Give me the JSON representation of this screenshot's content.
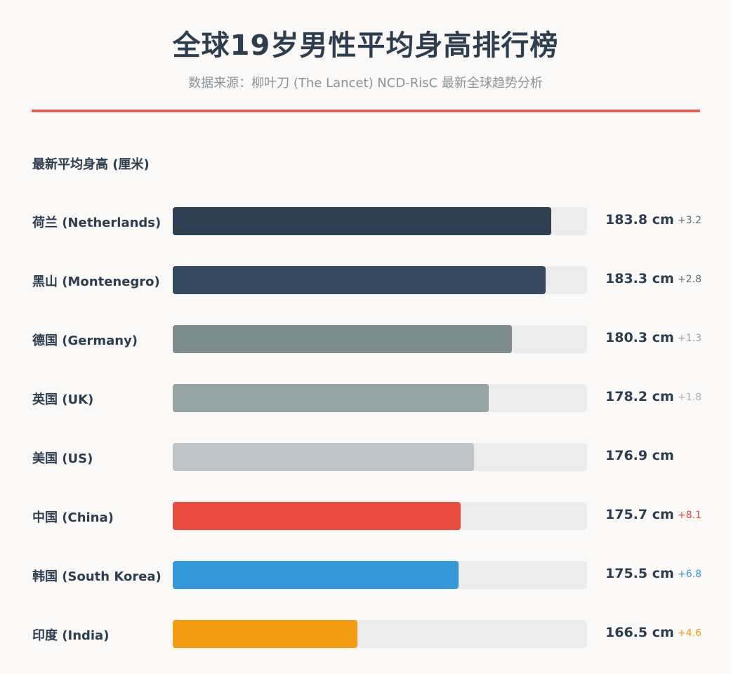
{
  "header": {
    "title": "全球19岁男性平均身高排行榜",
    "subtitle": "数据来源：柳叶刀 (The Lancet) NCD-RisC 最新全球趋势分析"
  },
  "chart_data": {
    "type": "bar",
    "orientation": "horizontal",
    "series_label": "最新平均身高 (厘米)",
    "unit": "cm",
    "xlim": [
      150,
      187
    ],
    "grid": false,
    "bars": [
      {
        "category": "荷兰 (Netherlands)",
        "value": 183.8,
        "value_label": "183.8 cm",
        "change": "+3.2",
        "color": "#2c3e50",
        "change_color": "#5d6d7e"
      },
      {
        "category": "黑山 (Montenegro)",
        "value": 183.3,
        "value_label": "183.3 cm",
        "change": "+2.8",
        "color": "#34495e",
        "change_color": "#5d6d7e"
      },
      {
        "category": "德国 (Germany)",
        "value": 180.3,
        "value_label": "180.3 cm",
        "change": "+1.3",
        "color": "#7f8c8d",
        "change_color": "#95a5a6"
      },
      {
        "category": "英国 (UK)",
        "value": 178.2,
        "value_label": "178.2 cm",
        "change": "+1.8",
        "color": "#95a5a6",
        "change_color": "#a9b5b6"
      },
      {
        "category": "美国 (US)",
        "value": 176.9,
        "value_label": "176.9 cm",
        "change": "",
        "color": "#bdc3c7",
        "change_color": "#d5dadc"
      },
      {
        "category": "中国 (China)",
        "value": 175.7,
        "value_label": "175.7 cm",
        "change": "+8.1",
        "color": "#e74c3c",
        "change_color": "#e74c3c"
      },
      {
        "category": "韩国 (South Korea)",
        "value": 175.5,
        "value_label": "175.5 cm",
        "change": "+6.8",
        "color": "#3498db",
        "change_color": "#3498db"
      },
      {
        "category": "印度 (India)",
        "value": 166.5,
        "value_label": "166.5 cm",
        "change": "+4.6",
        "color": "#f39c12",
        "change_color": "#f39c12"
      }
    ]
  }
}
